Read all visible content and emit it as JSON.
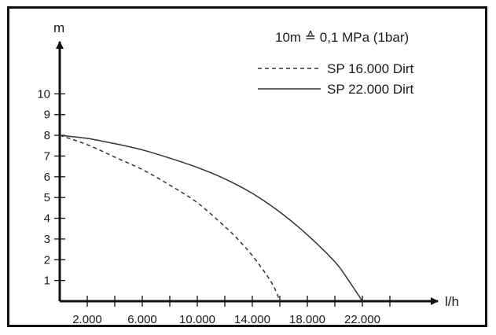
{
  "chart_data": {
    "type": "line",
    "title": "",
    "xlabel": "l/h",
    "ylabel": "m",
    "annotation": "10m ≙ 0,1 MPa (1bar)",
    "xlim": [
      0,
      24000
    ],
    "ylim": [
      0,
      11
    ],
    "x_ticks": [
      2000,
      4000,
      6000,
      8000,
      10000,
      12000,
      14000,
      16000,
      18000,
      20000,
      22000,
      24000
    ],
    "x_tick_labels": [
      {
        "value": 2000,
        "label": "2.000"
      },
      {
        "value": 6000,
        "label": "6.000"
      },
      {
        "value": 10000,
        "label": "10.000"
      },
      {
        "value": 14000,
        "label": "14.000"
      },
      {
        "value": 18000,
        "label": "18.000"
      },
      {
        "value": 22000,
        "label": "22.000"
      }
    ],
    "y_ticks": [
      1,
      2,
      3,
      4,
      5,
      6,
      7,
      8,
      9,
      10
    ],
    "y_tick_labels": [
      "1",
      "2",
      "3",
      "4",
      "5",
      "6",
      "7",
      "8",
      "9",
      "10"
    ],
    "grid": false,
    "legend_position": "top-right",
    "series": [
      {
        "name": "SP 16.000 Dirt",
        "line_style": "dashed",
        "color": "#333333",
        "x": [
          0,
          2000,
          4000,
          6000,
          8000,
          10000,
          12000,
          13000,
          14000,
          15000,
          15600,
          16000
        ],
        "y": [
          8.0,
          7.55,
          6.95,
          6.35,
          5.6,
          4.75,
          3.6,
          2.95,
          2.2,
          1.3,
          0.65,
          0
        ]
      },
      {
        "name": "SP 22.000 Dirt",
        "line_style": "solid",
        "color": "#333333",
        "x": [
          0,
          2000,
          4000,
          6000,
          8000,
          10000,
          12000,
          14000,
          16000,
          18000,
          20000,
          21000,
          22000
        ],
        "y": [
          8.0,
          7.85,
          7.6,
          7.3,
          6.9,
          6.45,
          5.9,
          5.2,
          4.3,
          3.2,
          1.9,
          1.0,
          0
        ]
      }
    ]
  }
}
